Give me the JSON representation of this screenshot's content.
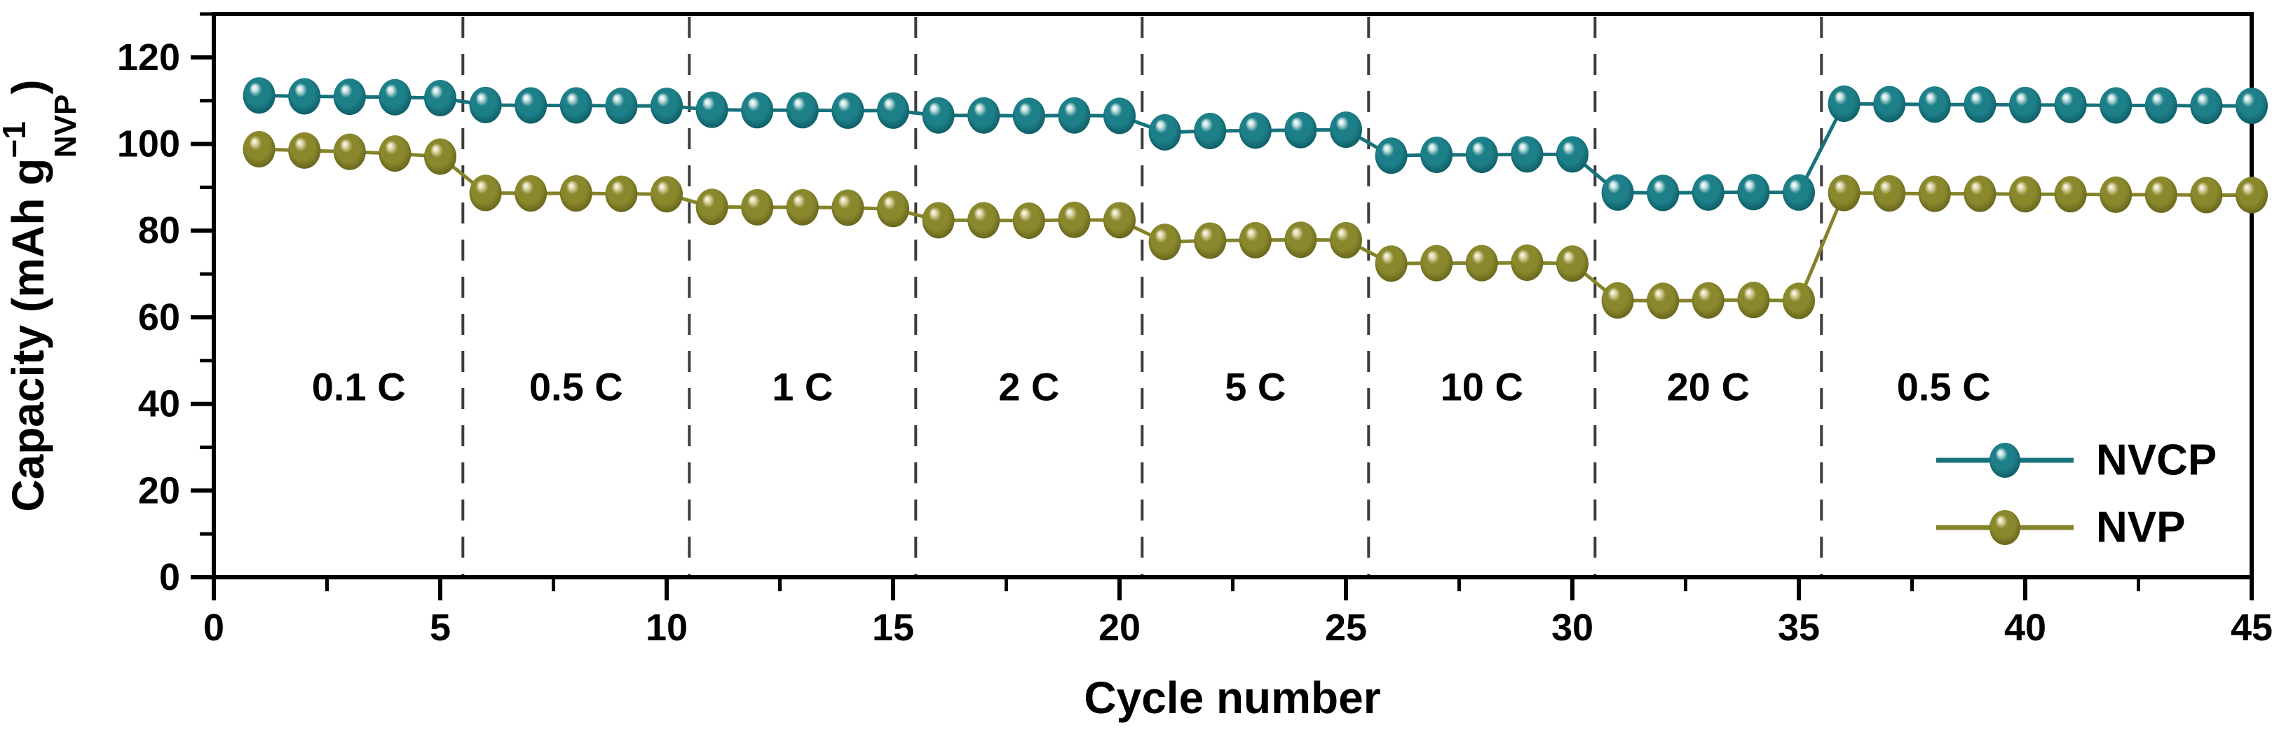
{
  "chart_data": {
    "type": "line",
    "title": "",
    "xlabel": "Cycle number",
    "ylabel": "Capacity (mAh g−1 NVP)",
    "ylabel_parts": {
      "prefix": "Capacity (mAh g",
      "superscript": "−1",
      "subscript": "NVP",
      "suffix": ")"
    },
    "xlim": [
      0,
      45
    ],
    "ylim": [
      0,
      130
    ],
    "x_major_ticks": [
      0,
      5,
      10,
      15,
      20,
      25,
      30,
      35,
      40,
      45
    ],
    "x_minor_ticks": [
      2.5,
      7.5,
      12.5,
      17.5,
      22.5,
      27.5,
      32.5,
      37.5,
      42.5
    ],
    "y_major_ticks": [
      0,
      20,
      40,
      60,
      80,
      100,
      120
    ],
    "y_minor_ticks": [
      10,
      30,
      50,
      70,
      90,
      110,
      130
    ],
    "grid": false,
    "legend_position": "lower right",
    "frame_color": "#000000",
    "stage_boundary_color": "#3d3d3d",
    "x": [
      1,
      2,
      3,
      4,
      5,
      6,
      7,
      8,
      9,
      10,
      11,
      12,
      13,
      14,
      15,
      16,
      17,
      18,
      19,
      20,
      21,
      22,
      23,
      24,
      25,
      26,
      27,
      28,
      29,
      30,
      31,
      32,
      33,
      34,
      35,
      36,
      37,
      38,
      39,
      40,
      41,
      42,
      43,
      44,
      45
    ],
    "series": [
      {
        "name": "NVCP",
        "line_color": "#16727c",
        "ball_light": "#cfe7e7",
        "ball_base": "#1d7f88",
        "ball_dark": "#0a535b",
        "values": [
          111.2,
          111.0,
          110.9,
          110.8,
          110.6,
          109.0,
          108.9,
          108.9,
          108.8,
          108.8,
          107.9,
          107.8,
          107.8,
          107.7,
          107.7,
          106.6,
          106.6,
          106.5,
          106.6,
          106.5,
          102.7,
          103.0,
          103.1,
          103.2,
          103.3,
          97.3,
          97.5,
          97.5,
          97.6,
          97.6,
          88.8,
          88.7,
          88.8,
          88.9,
          88.8,
          109.3,
          109.2,
          109.1,
          109.1,
          109.0,
          109.0,
          108.9,
          108.9,
          108.8,
          108.8
        ]
      },
      {
        "name": "NVP",
        "line_color": "#85832a",
        "ball_light": "#e0dcb2",
        "ball_base": "#8a882c",
        "ball_dark": "#5c5a16",
        "values": [
          98.8,
          98.5,
          98.2,
          97.8,
          97.1,
          88.7,
          88.6,
          88.6,
          88.5,
          88.4,
          85.5,
          85.4,
          85.4,
          85.3,
          85.0,
          82.4,
          82.4,
          82.3,
          82.5,
          82.4,
          77.4,
          77.7,
          77.8,
          77.9,
          77.8,
          72.4,
          72.5,
          72.5,
          72.6,
          72.4,
          63.9,
          63.8,
          63.9,
          64.0,
          63.8,
          88.7,
          88.6,
          88.5,
          88.5,
          88.4,
          88.4,
          88.3,
          88.3,
          88.2,
          88.2
        ]
      }
    ],
    "stage_boundaries_x": [
      5.5,
      10.5,
      15.5,
      20.5,
      25.5,
      30.5,
      35.5
    ],
    "stage_labels": [
      {
        "label": "0.1 C",
        "x": 3.2,
        "y": 44
      },
      {
        "label": "0.5 C",
        "x": 8.0,
        "y": 44
      },
      {
        "label": "1 C",
        "x": 13.0,
        "y": 44
      },
      {
        "label": "2 C",
        "x": 18.0,
        "y": 44
      },
      {
        "label": "5 C",
        "x": 23.0,
        "y": 44
      },
      {
        "label": "10 C",
        "x": 28.0,
        "y": 44
      },
      {
        "label": "20 C",
        "x": 33.0,
        "y": 44
      },
      {
        "label": "0.5 C",
        "x": 38.2,
        "y": 44
      }
    ],
    "legend": {
      "items": [
        "NVCP",
        "NVP"
      ]
    }
  }
}
